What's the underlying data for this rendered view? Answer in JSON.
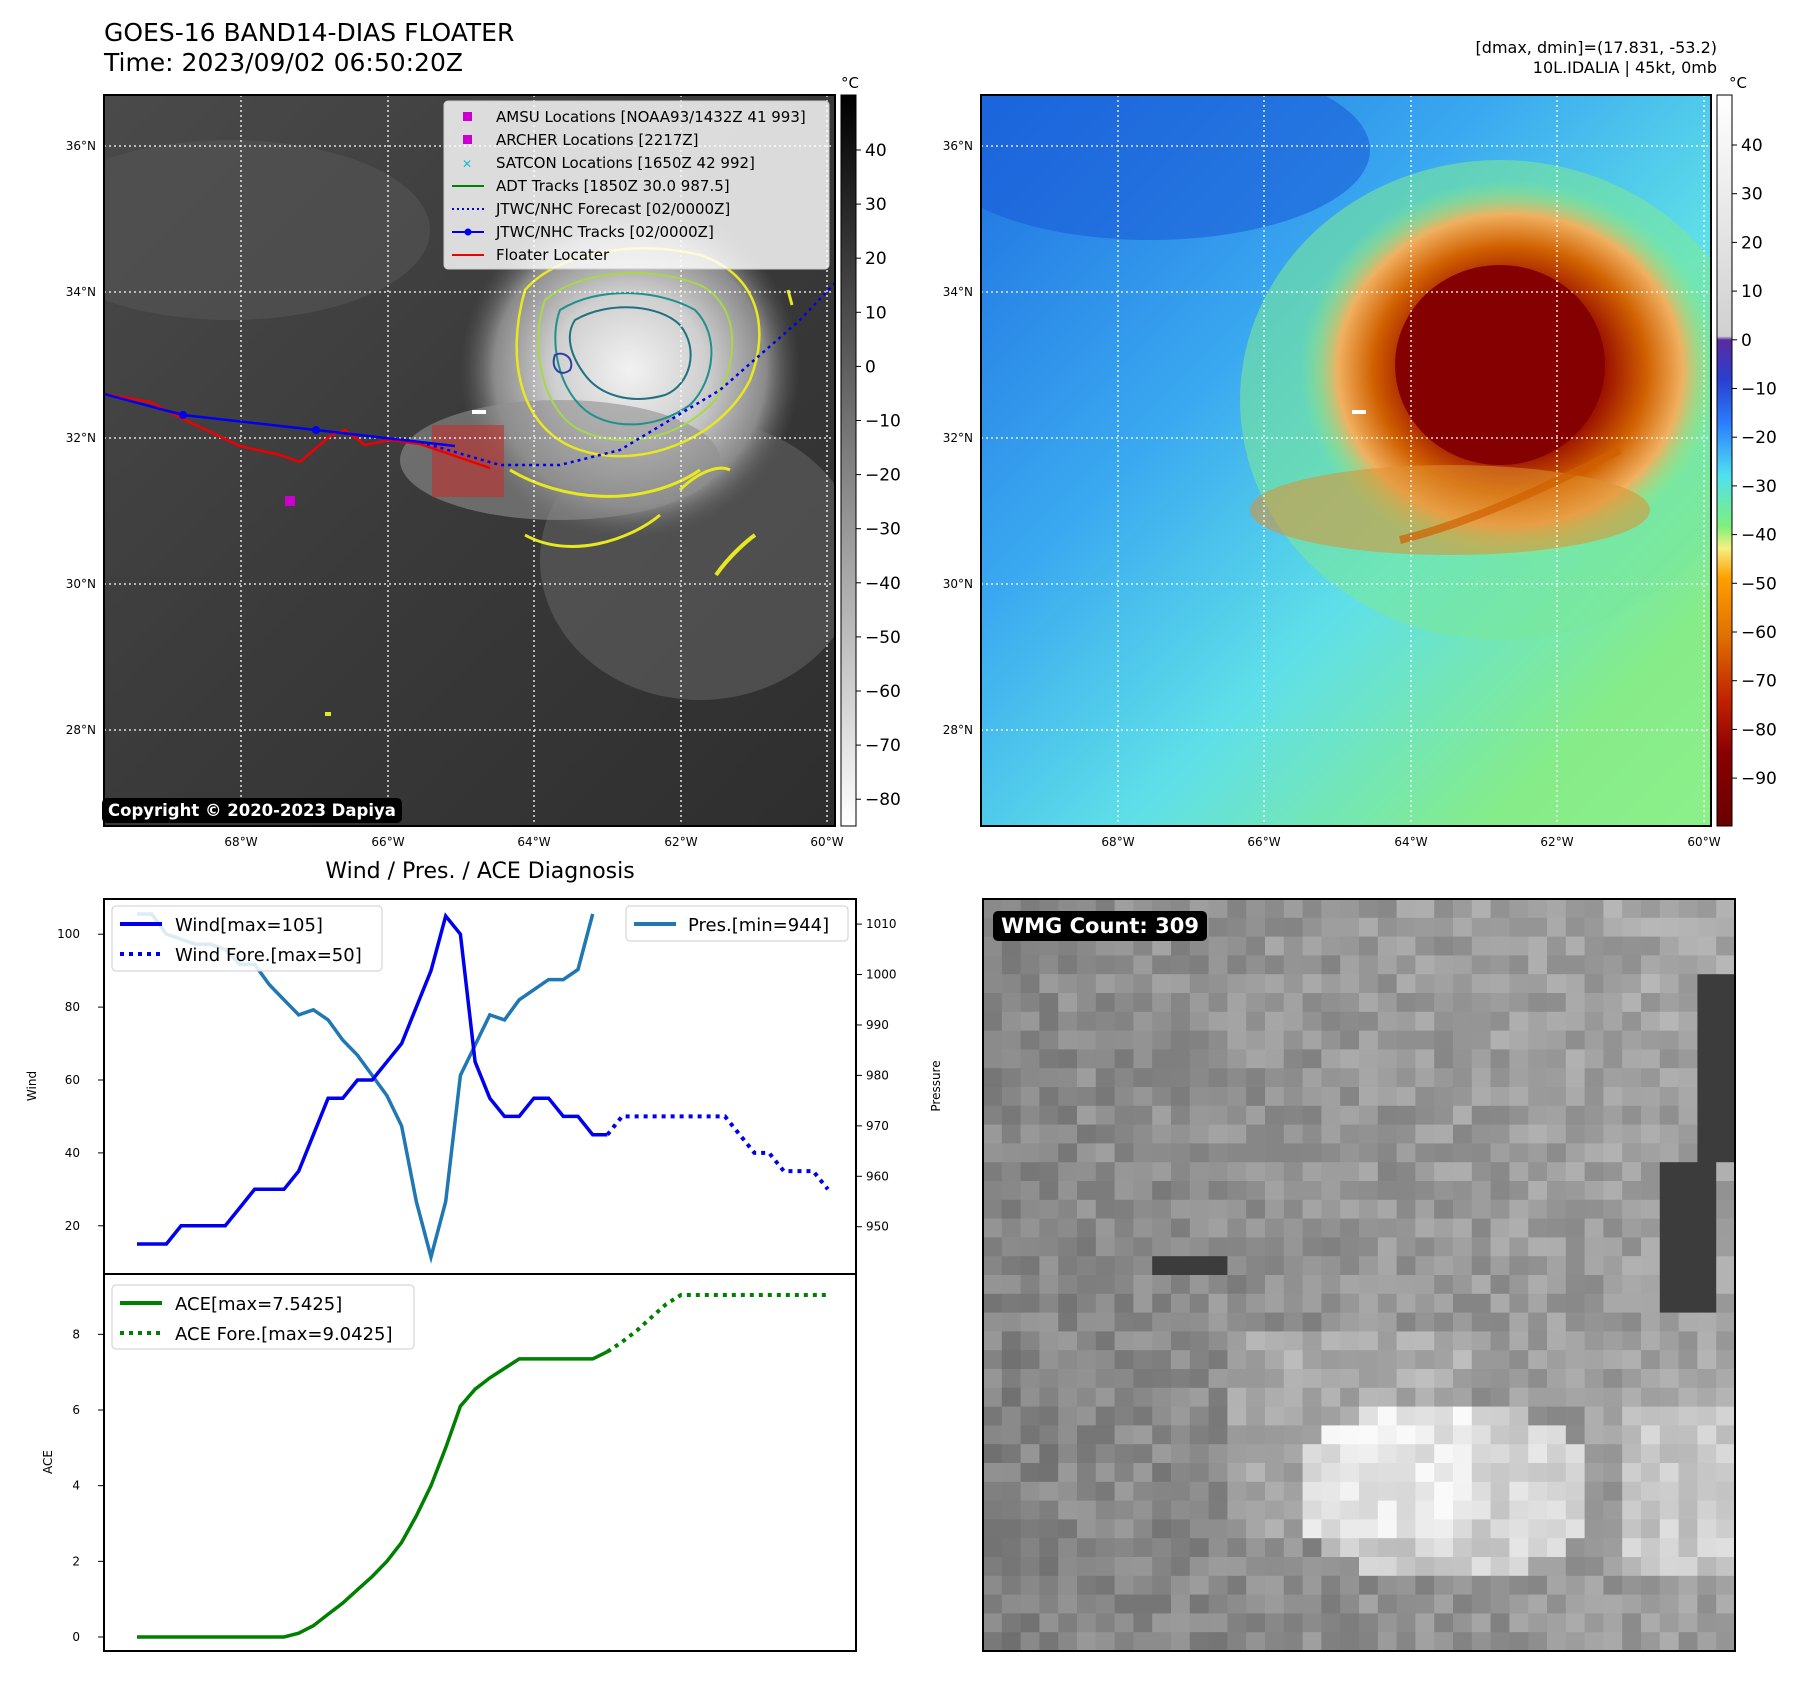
{
  "header": {
    "title_line1": "GOES-16 BAND14-DIAS FLOATER",
    "title_line2": "Time: 2023/09/02 06:50:20Z",
    "stats_line1": "[dmax, dmin]=(17.831, -53.2)",
    "stats_line2": "10L.IDALIA | 45kt, 0mb",
    "copyright": "Copyright © 2020-2023 Dapiya",
    "wmg_label": "WMG Count: 309"
  },
  "map": {
    "lat_labels": [
      "36°N",
      "34°N",
      "32°N",
      "30°N",
      "28°N"
    ],
    "lon_labels": [
      "68°W",
      "66°W",
      "64°W",
      "62°W",
      "60°W"
    ],
    "gray_colorbar": {
      "unit": "°C",
      "ticks": [
        "40",
        "30",
        "20",
        "10",
        "0",
        "−10",
        "−20",
        "−30",
        "−40",
        "−50",
        "−60",
        "−70",
        "−80"
      ]
    },
    "color_colorbar": {
      "unit": "°C",
      "ticks": [
        "40",
        "30",
        "20",
        "10",
        "0",
        "−10",
        "−20",
        "−30",
        "−40",
        "−50",
        "−60",
        "−70",
        "−80",
        "−90"
      ]
    }
  },
  "legend": [
    {
      "label": "AMSU Locations [NOAA93/1432Z 41 993]",
      "color": "#cc00cc",
      "marker": "square"
    },
    {
      "label": "ARCHER Locations [2217Z]",
      "color": "#cc00cc",
      "marker": "square"
    },
    {
      "label": "SATCON Locations [1650Z 42 992]",
      "color": "#17becf",
      "marker": "x"
    },
    {
      "label": "ADT Tracks [1850Z 30.0 987.5]",
      "color": "#008000",
      "marker": "line"
    },
    {
      "label": "JTWC/NHC Forecast [02/0000Z]",
      "color": "#0000ee",
      "marker": "dotted"
    },
    {
      "label": "JTWC/NHC Tracks [02/0000Z]",
      "color": "#0000ee",
      "marker": "line-dot"
    },
    {
      "label": "Floater Locater",
      "color": "#ee0000",
      "marker": "line"
    }
  ],
  "chart_data": [
    {
      "type": "line",
      "title": "Wind / Pres. / ACE Diagnosis",
      "ylabel": "Wind",
      "ylabel_right": "Pressure",
      "yticks_left": [
        "20",
        "40",
        "60",
        "80",
        "100"
      ],
      "yticks_right": [
        "950",
        "960",
        "970",
        "980",
        "990",
        "1000",
        "1010"
      ],
      "series": [
        {
          "name": "Wind[max=105]",
          "color": "#0000ee",
          "style": "solid",
          "values": [
            15,
            15,
            15,
            20,
            20,
            20,
            20,
            25,
            30,
            30,
            30,
            35,
            45,
            55,
            55,
            60,
            60,
            65,
            70,
            80,
            90,
            105,
            100,
            65,
            55,
            50,
            50,
            55,
            55,
            50,
            50,
            45,
            45
          ]
        },
        {
          "name": "Wind Fore.[max=50]",
          "color": "#0000ee",
          "style": "dotted",
          "values": [
            45,
            50,
            50,
            50,
            50,
            50,
            50,
            50,
            50,
            45,
            40,
            40,
            35,
            35,
            35,
            30
          ]
        },
        {
          "name": "Pres.[min=944]",
          "color": "#1f77b4",
          "style": "solid",
          "values": [
            1012,
            1012,
            1008,
            1007,
            1006,
            1006,
            1005,
            1002,
            1002,
            998,
            995,
            992,
            993,
            991,
            987,
            984,
            980,
            976,
            970,
            955,
            944,
            955,
            980,
            986,
            992,
            991,
            995,
            997,
            999,
            999,
            1001,
            1012
          ]
        }
      ]
    },
    {
      "type": "line",
      "ylabel": "ACE",
      "yticks": [
        "0",
        "2",
        "4",
        "6",
        "8"
      ],
      "series": [
        {
          "name": "ACE[max=7.5425]",
          "color": "#008000",
          "style": "solid",
          "values": [
            0,
            0,
            0,
            0,
            0,
            0,
            0,
            0,
            0,
            0,
            0,
            0.1,
            0.3,
            0.6,
            0.9,
            1.25,
            1.6,
            2.0,
            2.5,
            3.2,
            4.0,
            5.0,
            6.1,
            6.55,
            6.85,
            7.1,
            7.35,
            7.35,
            7.35,
            7.35,
            7.35,
            7.35,
            7.54
          ]
        },
        {
          "name": "ACE Fore.[max=9.0425]",
          "color": "#008000",
          "style": "dotted",
          "values": [
            7.54,
            7.8,
            8.1,
            8.45,
            8.8,
            9.04,
            9.04,
            9.04,
            9.04,
            9.04,
            9.04,
            9.04,
            9.04,
            9.04,
            9.04,
            9.04
          ]
        }
      ]
    }
  ]
}
